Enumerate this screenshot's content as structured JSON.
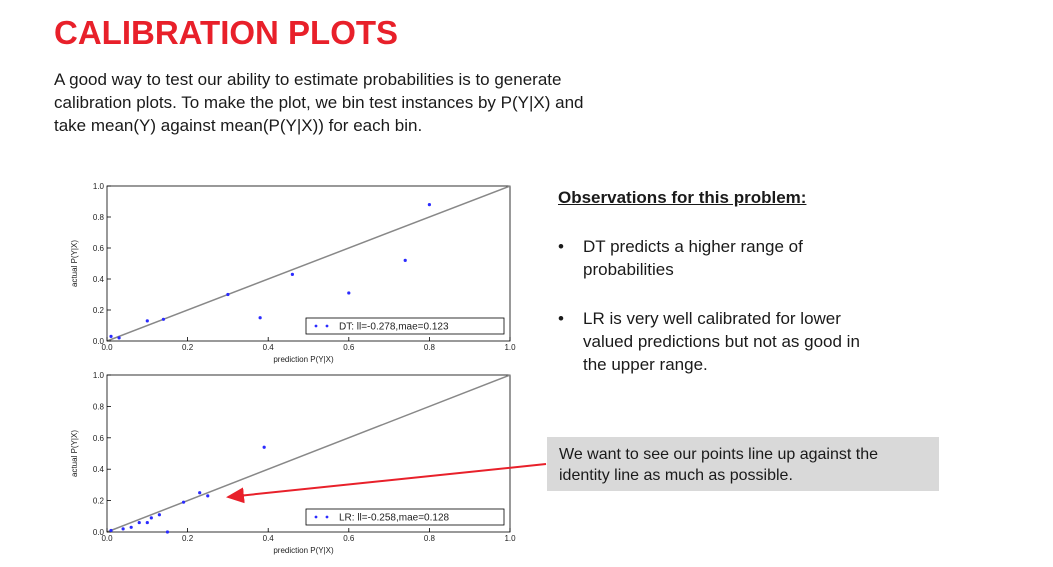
{
  "slide": {
    "title": "CALIBRATION PLOTS",
    "intro_lines": [
      "A good way to test our ability to estimate probabilities is to generate",
      "calibration plots. To make the plot, we bin test instances by P(Y|X) and",
      "take mean(Y) against mean(P(Y|X)) for each bin."
    ],
    "observations_heading": "Observations for this problem:",
    "bullet_char": "•",
    "bullets": [
      {
        "lines": [
          "DT predicts a higher range of",
          "probabilities"
        ]
      },
      {
        "lines": [
          "LR is very well calibrated for lower",
          "valued predictions but not as good in",
          "the upper range."
        ]
      }
    ],
    "note_lines": [
      "We want to see our points line up against the",
      "identity line as much as possible."
    ],
    "colors": {
      "title": "#e8202a",
      "points": "#2b2bff",
      "identity_line": "#888888",
      "arrow": "#e8202a",
      "note_bg": "#d9d9d9"
    }
  },
  "chart_data": [
    {
      "type": "scatter",
      "series": [
        {
          "name": "DT: ll=-0.278,mae=0.123",
          "x": [
            0.01,
            0.03,
            0.1,
            0.14,
            0.3,
            0.38,
            0.46,
            0.6,
            0.74,
            0.8
          ],
          "y": [
            0.03,
            0.02,
            0.13,
            0.14,
            0.3,
            0.15,
            0.43,
            0.31,
            0.52,
            0.88
          ]
        }
      ],
      "identity_line": true,
      "xlabel": "prediction P(Y|X)",
      "ylabel": "actual P(Y|X)",
      "xlim": [
        0,
        1
      ],
      "ylim": [
        0,
        1
      ],
      "xticks": [
        "0.0",
        "0.2",
        "0.4",
        "0.6",
        "0.8",
        "1.0"
      ],
      "yticks": [
        "0.0",
        "0.2",
        "0.4",
        "0.6",
        "0.8",
        "1.0"
      ],
      "legend_position": "lower right"
    },
    {
      "type": "scatter",
      "series": [
        {
          "name": "LR: ll=-0.258,mae=0.128",
          "x": [
            0.01,
            0.04,
            0.06,
            0.08,
            0.1,
            0.11,
            0.13,
            0.15,
            0.19,
            0.23,
            0.25,
            0.39
          ],
          "y": [
            0.01,
            0.02,
            0.03,
            0.06,
            0.06,
            0.09,
            0.11,
            0.0,
            0.19,
            0.25,
            0.23,
            0.54
          ]
        }
      ],
      "identity_line": true,
      "xlabel": "prediction P(Y|X)",
      "ylabel": "actual P(Y|X)",
      "xlim": [
        0,
        1
      ],
      "ylim": [
        0,
        1
      ],
      "xticks": [
        "0.0",
        "0.2",
        "0.4",
        "0.6",
        "0.8",
        "1.0"
      ],
      "yticks": [
        "0.0",
        "0.2",
        "0.4",
        "0.6",
        "0.8",
        "1.0"
      ],
      "legend_position": "lower right"
    }
  ]
}
